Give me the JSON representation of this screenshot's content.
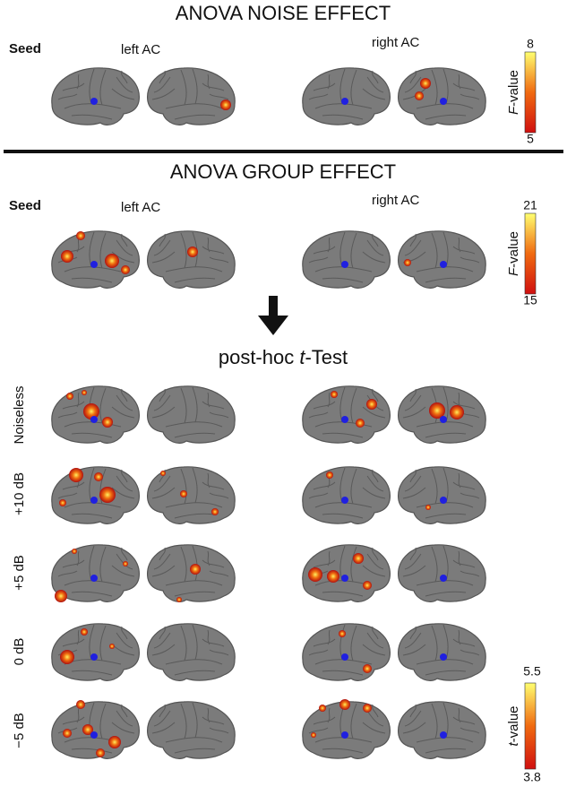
{
  "sections": [
    {
      "title": "ANOVA NOISE EFFECT",
      "seed_label": "Seed",
      "seeds": [
        "left AC",
        "right AC"
      ],
      "colorbar": {
        "label": {
          "italic": "F",
          "text": "-value"
        },
        "max": "8",
        "min": "5"
      }
    },
    {
      "title": "ANOVA GROUP EFFECT",
      "seed_label": "Seed",
      "seeds": [
        "left AC",
        "right AC"
      ],
      "colorbar": {
        "label": {
          "italic": "F",
          "text": "-value"
        },
        "max": "21",
        "min": "15"
      }
    }
  ],
  "post_hoc": {
    "title": {
      "text": "post-hoc ",
      "italic": "t",
      "rest": "-Test"
    },
    "rows": [
      "Noiseless",
      "+10 dB",
      "+5 dB",
      "0 dB",
      "−5 dB"
    ],
    "colorbar": {
      "label": {
        "italic": "t",
        "text": "-value"
      },
      "max": "5.5",
      "min": "3.8"
    }
  }
}
